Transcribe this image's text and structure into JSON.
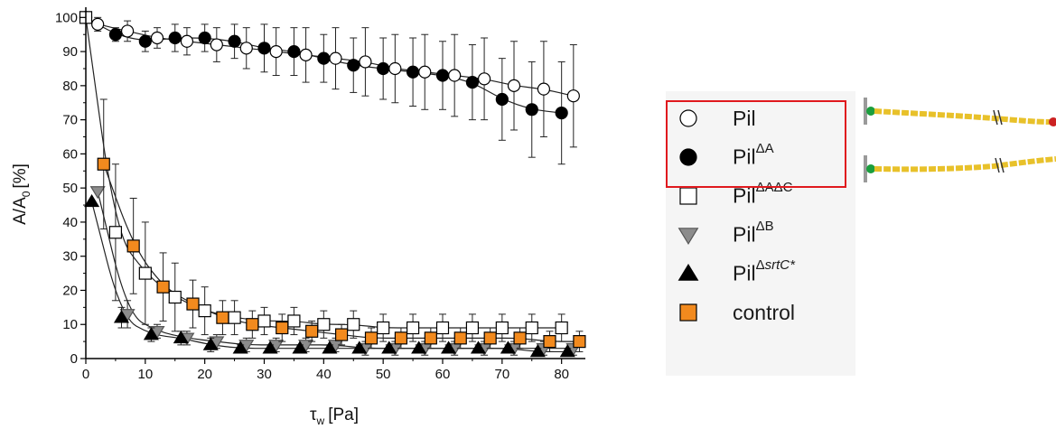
{
  "chart_data": {
    "type": "scatter",
    "title": "",
    "xlabel_symbol": "τ",
    "xlabel_sub": "w",
    "xlabel_unit": "[Pa]",
    "ylabel_main": "A/A",
    "ylabel_sub": "0",
    "ylabel_unit": "[%]",
    "xlim": [
      0,
      84
    ],
    "ylim": [
      0,
      103
    ],
    "xticks": [
      "0",
      "10",
      "20",
      "30",
      "40",
      "50",
      "60",
      "70",
      "80"
    ],
    "yticks": [
      "0",
      "10",
      "20",
      "30",
      "40",
      "50",
      "60",
      "70",
      "80",
      "90",
      "100"
    ],
    "legend_position": "right",
    "series": [
      {
        "name": "Pil",
        "name_sup": "",
        "marker": "circle-open",
        "color": "#ffffff",
        "x": [
          0,
          2,
          7,
          12,
          17,
          22,
          27,
          32,
          37,
          42,
          47,
          52,
          57,
          62,
          67,
          72,
          77,
          82
        ],
        "y": [
          100,
          98,
          96,
          94,
          93,
          92,
          91,
          90,
          89,
          88,
          87,
          85,
          84,
          83,
          82,
          80,
          79,
          77
        ],
        "err": [
          0,
          2,
          3,
          3,
          4,
          5,
          6,
          7,
          8,
          9,
          10,
          10,
          11,
          12,
          12,
          13,
          14,
          15
        ]
      },
      {
        "name": "Pil",
        "name_sup": "ΔA",
        "marker": "circle-filled",
        "color": "#000000",
        "x": [
          0,
          5,
          10,
          15,
          20,
          25,
          30,
          35,
          40,
          45,
          50,
          55,
          60,
          65,
          70,
          75,
          80
        ],
        "y": [
          100,
          95,
          93,
          94,
          94,
          93,
          91,
          90,
          88,
          86,
          85,
          84,
          83,
          81,
          76,
          73,
          72
        ],
        "err": [
          0,
          2,
          3,
          4,
          4,
          5,
          7,
          7,
          7,
          8,
          9,
          10,
          10,
          11,
          12,
          14,
          15
        ]
      },
      {
        "name": "Pil",
        "name_sup": "ΔAΔC",
        "marker": "square-open",
        "color": "#ffffff",
        "x": [
          0,
          5,
          10,
          15,
          20,
          25,
          30,
          35,
          40,
          45,
          50,
          55,
          60,
          65,
          70,
          75,
          80
        ],
        "y": [
          100,
          37,
          25,
          18,
          14,
          12,
          11,
          11,
          10,
          10,
          9,
          9,
          9,
          9,
          9,
          9,
          9
        ],
        "err": [
          0,
          20,
          15,
          10,
          7,
          5,
          4,
          4,
          4,
          4,
          4,
          4,
          4,
          4,
          4,
          4,
          4
        ]
      },
      {
        "name": "Pil",
        "name_sup": "ΔB",
        "marker": "triangle-down",
        "color": "#8c8c8c",
        "x": [
          2,
          7,
          12,
          17,
          22,
          27,
          32,
          37,
          42,
          47,
          52,
          57,
          62,
          67,
          72,
          77,
          82
        ],
        "y": [
          49,
          13,
          8,
          6,
          5,
          4,
          4,
          4,
          4,
          3,
          3,
          3,
          3,
          3,
          3,
          3,
          3
        ],
        "err": [
          0,
          4,
          2,
          2,
          2,
          2,
          2,
          2,
          2,
          2,
          2,
          2,
          2,
          2,
          2,
          2,
          2
        ]
      },
      {
        "name": "Pil",
        "name_sup": "ΔsrtC*",
        "marker": "triangle-up",
        "color": "#000000",
        "x": [
          1,
          6,
          11,
          16,
          21,
          26,
          31,
          36,
          41,
          46,
          51,
          56,
          61,
          66,
          71,
          76,
          81
        ],
        "y": [
          46,
          12,
          7,
          6,
          4,
          3,
          3,
          3,
          3,
          3,
          3,
          3,
          3,
          3,
          3,
          2,
          2
        ],
        "err": [
          0,
          3,
          2,
          2,
          2,
          1,
          1,
          1,
          1,
          1,
          1,
          1,
          1,
          1,
          1,
          1,
          1
        ]
      },
      {
        "name": "control",
        "name_sup": "",
        "marker": "square-filled",
        "color": "#f28a1e",
        "x": [
          3,
          8,
          13,
          18,
          23,
          28,
          33,
          38,
          43,
          48,
          53,
          58,
          63,
          68,
          73,
          78,
          83
        ],
        "y": [
          57,
          33,
          21,
          16,
          12,
          10,
          9,
          8,
          7,
          6,
          6,
          6,
          6,
          6,
          6,
          5,
          5
        ],
        "err": [
          19,
          14,
          10,
          7,
          5,
          4,
          4,
          3,
          3,
          3,
          3,
          3,
          3,
          3,
          3,
          3,
          3
        ]
      }
    ]
  },
  "illustration": {
    "description": "pili schematic",
    "tip_color": "#cc2222",
    "base_color": "#1b9e3e",
    "fiber_color": "#e8c12a"
  }
}
